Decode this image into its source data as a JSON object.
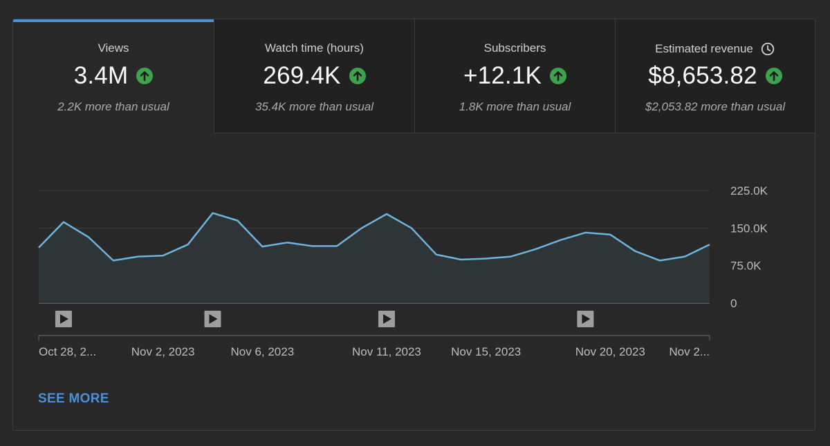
{
  "metrics": [
    {
      "label": "Views",
      "value": "3.4M",
      "sub": "2.2K more than usual",
      "trend": "up"
    },
    {
      "label": "Watch time (hours)",
      "value": "269.4K",
      "sub": "35.4K more than usual",
      "trend": "up"
    },
    {
      "label": "Subscribers",
      "value": "+12.1K",
      "sub": "1.8K more than usual",
      "trend": "up"
    },
    {
      "label": "Estimated revenue",
      "value": "$8,653.82",
      "sub": "$2,053.82 more than usual",
      "trend": "up",
      "info_icon": "clock-icon"
    }
  ],
  "colors": {
    "accent": "#4a90d9",
    "line": "#6bb5de",
    "area": "#2f3538",
    "trend_up": "#3fa34d",
    "grid": "#3a3a3a"
  },
  "chart_data": {
    "type": "area",
    "series": [
      {
        "name": "Views",
        "values": [
          111,
          162,
          132,
          85,
          93,
          95,
          117,
          180,
          165,
          113,
          121,
          114,
          114,
          150,
          178,
          150,
          97,
          87,
          89,
          93,
          108,
          126,
          141,
          137,
          104,
          85,
          93,
          117
        ]
      }
    ],
    "ylim": [
      0,
      225
    ],
    "yticks": [
      0,
      75,
      150,
      225
    ],
    "ytick_labels": [
      "0",
      "75.0K",
      "150.0K",
      "225.0K"
    ],
    "xtick_labels": [
      {
        "label": "Oct 28, 2...",
        "index": 0
      },
      {
        "label": "Nov 2, 2023",
        "index": 5
      },
      {
        "label": "Nov 6, 2023",
        "index": 9
      },
      {
        "label": "Nov 11, 2023",
        "index": 14
      },
      {
        "label": "Nov 15, 2023",
        "index": 18
      },
      {
        "label": "Nov 20, 2023",
        "index": 23
      },
      {
        "label": "Nov 2...",
        "index": 27
      }
    ],
    "video_markers": [
      1,
      7,
      14,
      22
    ],
    "grid": true
  },
  "see_more_label": "SEE MORE"
}
